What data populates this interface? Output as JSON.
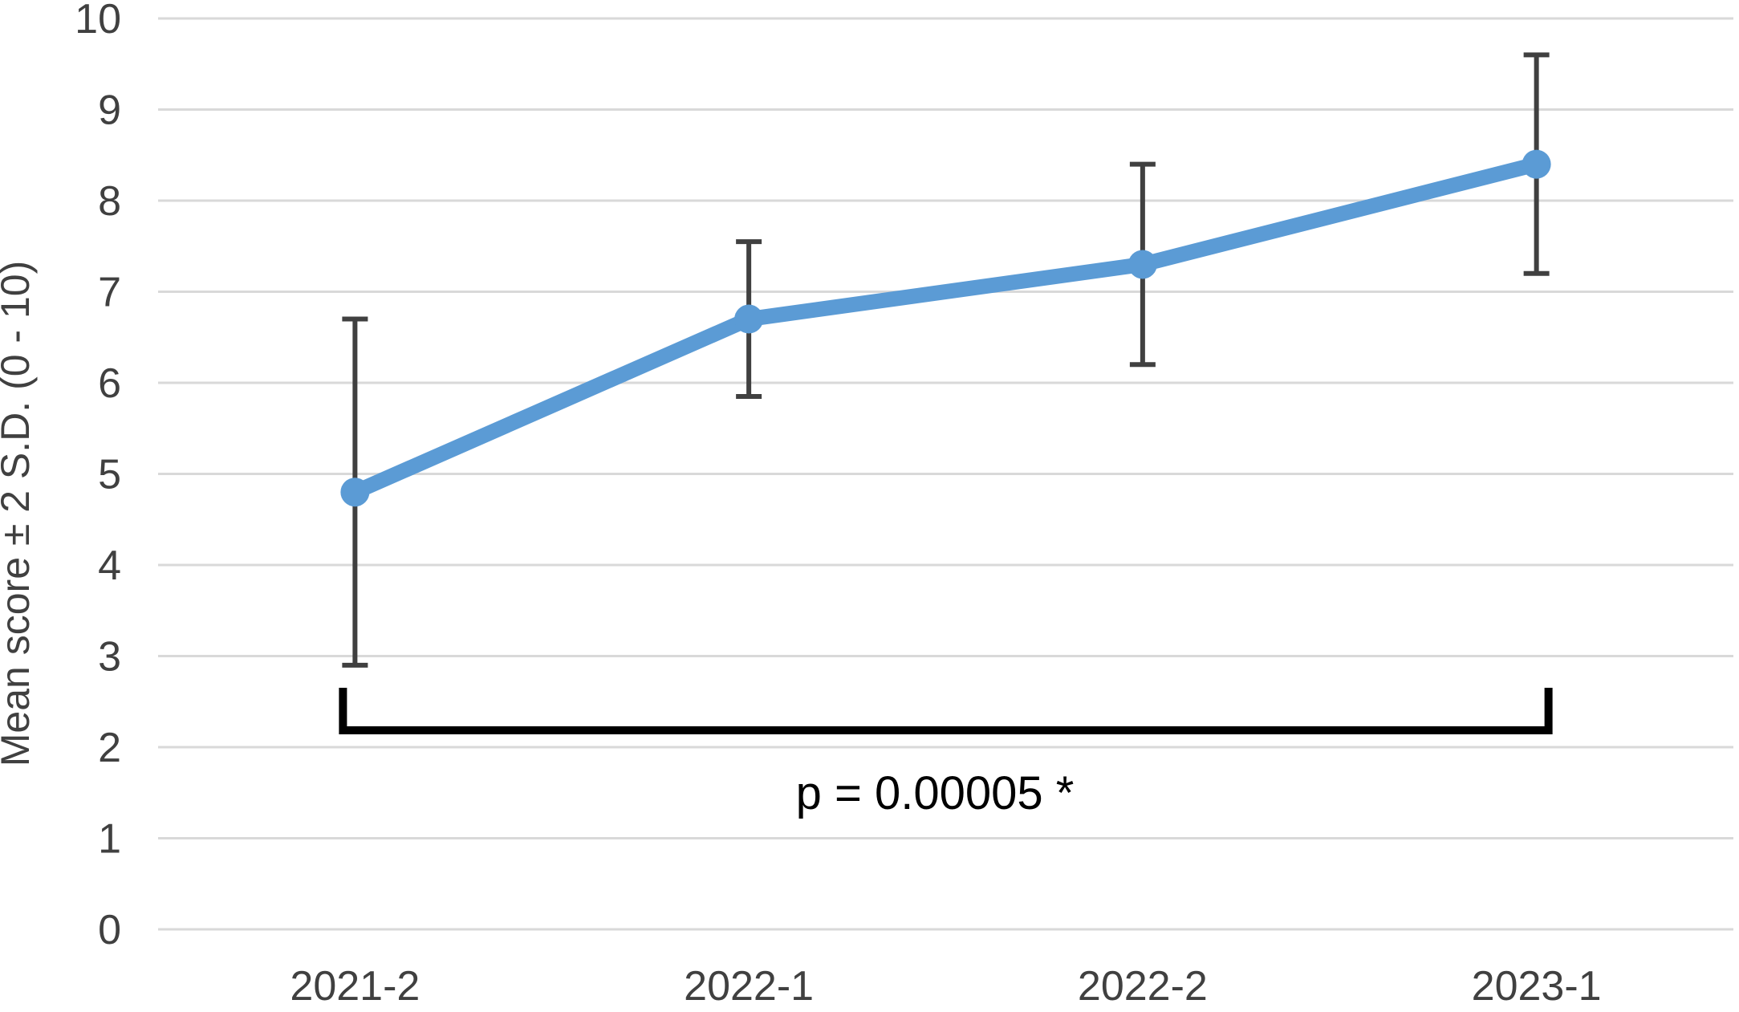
{
  "chart_data": {
    "type": "line",
    "title": "",
    "categories": [
      "2021-2",
      "2022-1",
      "2022-2",
      "2023-1"
    ],
    "series": [
      {
        "name": "Mean score",
        "values": [
          4.8,
          6.7,
          7.3,
          8.4
        ],
        "error_upper": [
          6.7,
          7.55,
          8.4,
          9.6
        ],
        "error_lower": [
          2.9,
          5.85,
          6.2,
          7.2
        ]
      }
    ],
    "xlabel": "",
    "ylabel": "Mean score ± 2 S.D. (0 - 10)",
    "ylim": [
      0,
      10
    ],
    "yticks": [
      0,
      1,
      2,
      3,
      4,
      5,
      6,
      7,
      8,
      9,
      10
    ],
    "grid": true,
    "legend": "none",
    "annotation": {
      "text": "p = 0.00005 *",
      "bracket_from_category": "2021-2",
      "bracket_to_category": "2023-1"
    }
  },
  "style": {
    "series_color": "#5B9BD5",
    "gridline_color": "#D9D9D9",
    "axis_text_color": "#404040",
    "error_bar_color": "#404040",
    "bracket_color": "#000000",
    "annotation_text_color": "#000000",
    "background_color": "#FFFFFF"
  }
}
